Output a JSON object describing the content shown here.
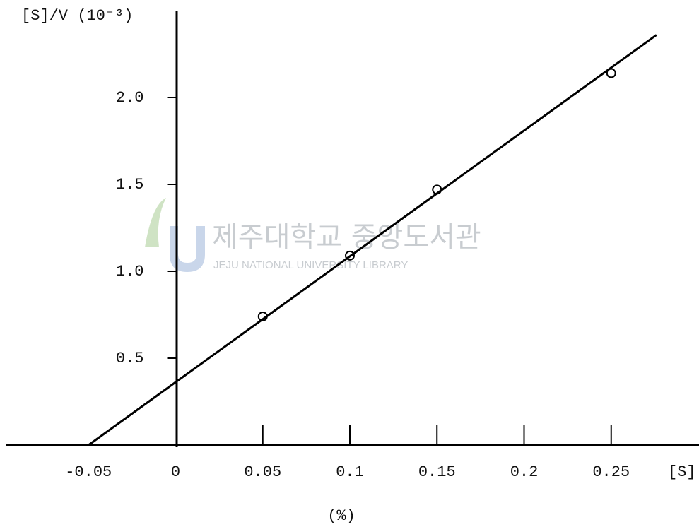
{
  "chart_data": {
    "type": "scatter",
    "y_label": "[S]/V (10⁻³)",
    "x_label": "[S]",
    "unit_label": "(%)",
    "watermark": {
      "title": "제주대학교 중앙도서관",
      "subtitle": "JEJU NATIONAL UNIVERSITY LIBRARY"
    },
    "xlim": [
      -0.1,
      0.3
    ],
    "xticks": [
      -0.05,
      0,
      0.05,
      0.1,
      0.15,
      0.2,
      0.25
    ],
    "ylim": [
      0,
      2.5
    ],
    "yticks": [
      0.5,
      {
        "value": 1,
        "label": "1.0"
      },
      1.5,
      {
        "value": 2,
        "label": "2.0"
      }
    ],
    "series": [
      {
        "style": "markers",
        "color": "#000000",
        "x": [
          0.05,
          0.1,
          0.15,
          0.25
        ],
        "values": [
          0.74,
          1.09,
          1.47,
          2.14
        ]
      },
      {
        "style": "line",
        "color": "#000000",
        "x": [
          -0.05,
          0.276
        ],
        "values": [
          0,
          2.36
        ]
      }
    ]
  }
}
